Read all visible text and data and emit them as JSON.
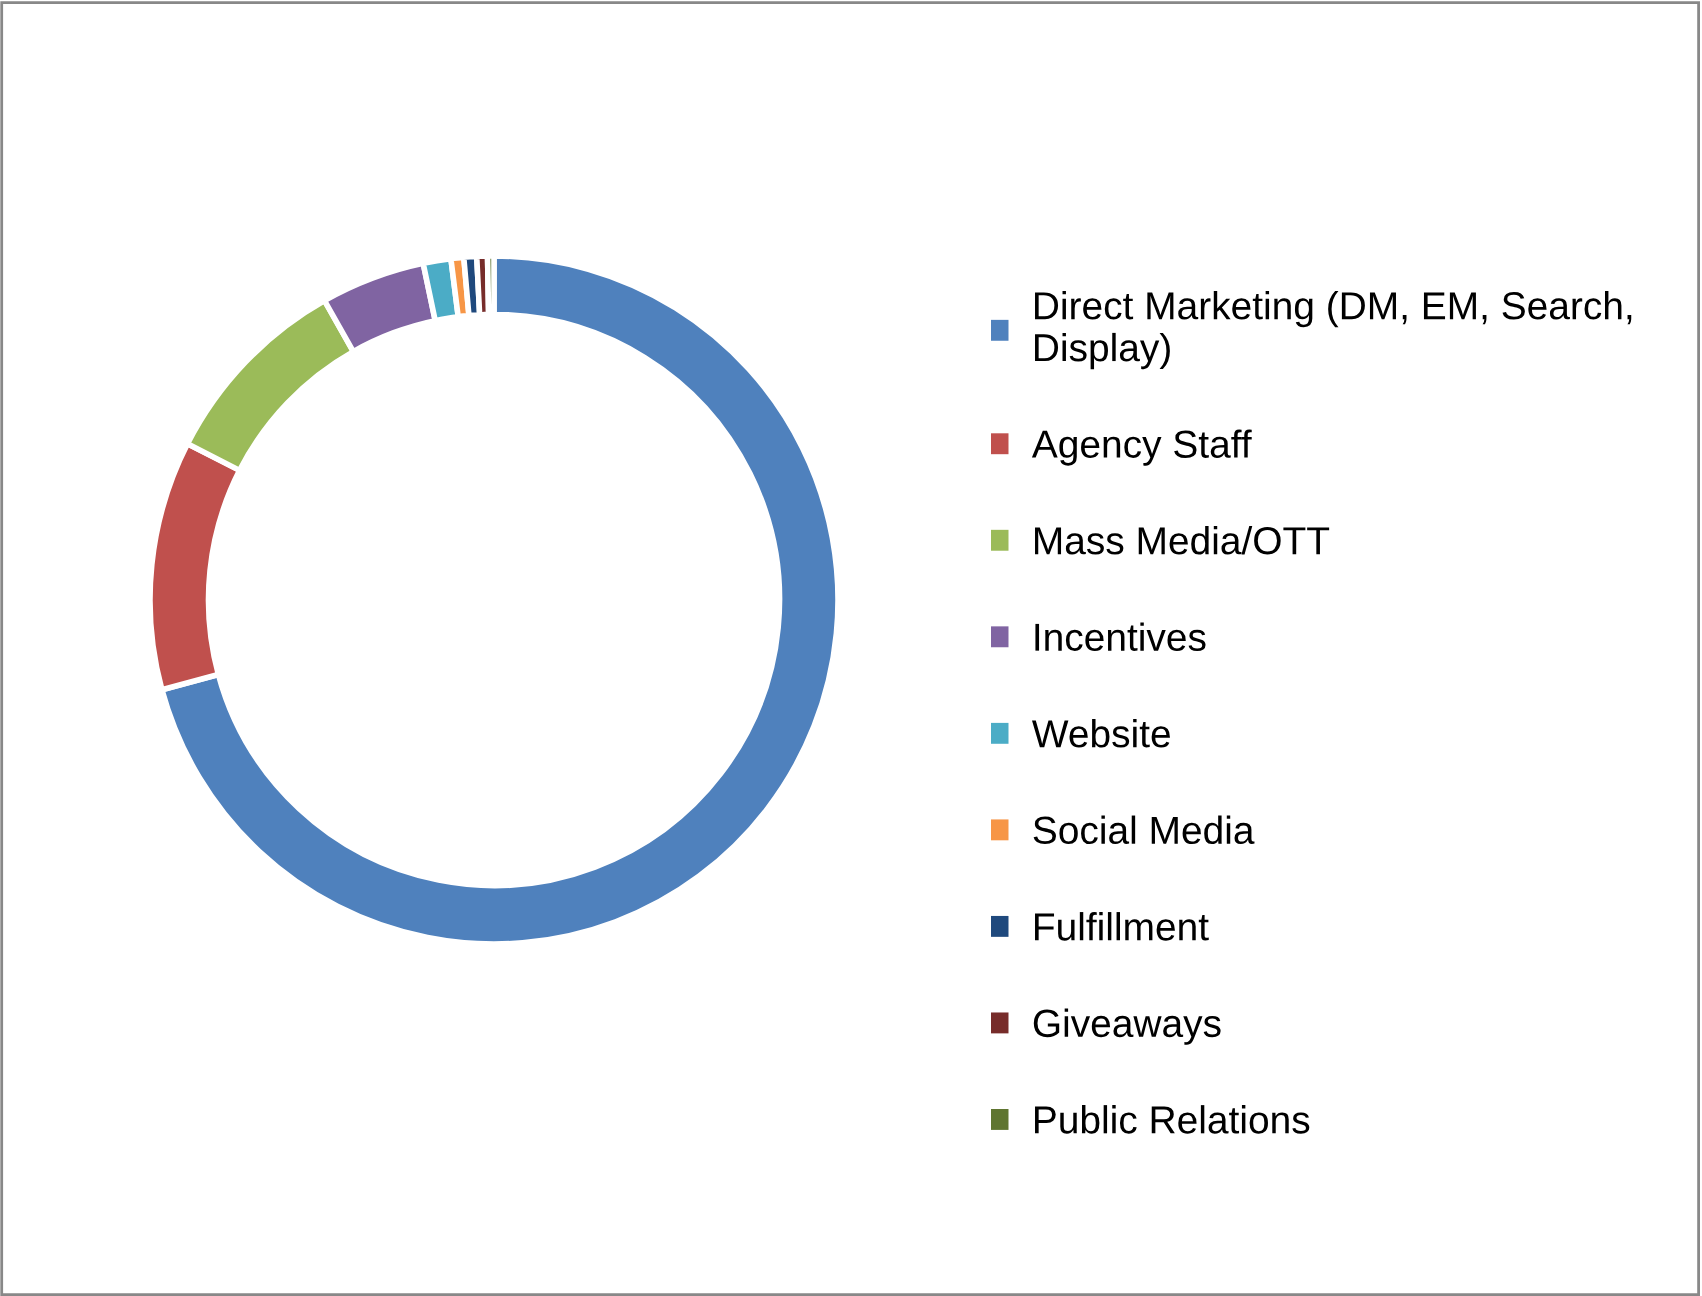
{
  "chart_data": {
    "type": "donut",
    "categories": [
      "Direct Marketing (DM, EM, Search,\nDisplay)",
      "Agency Staff",
      "Mass Media/OTT",
      "Incentives",
      "Website",
      "Social Media",
      "Fulfillment",
      "Giveaways",
      "Public Relations"
    ],
    "values": [
      70.8,
      11.7,
      9.3,
      4.9,
      1.3,
      0.6,
      0.6,
      0.5,
      0.3
    ],
    "colors": [
      "#4f81bd",
      "#c0504d",
      "#9bbb59",
      "#8064a2",
      "#4bacc6",
      "#f79646",
      "#1f497d",
      "#772c2a",
      "#5f7530"
    ],
    "legend": "right"
  }
}
